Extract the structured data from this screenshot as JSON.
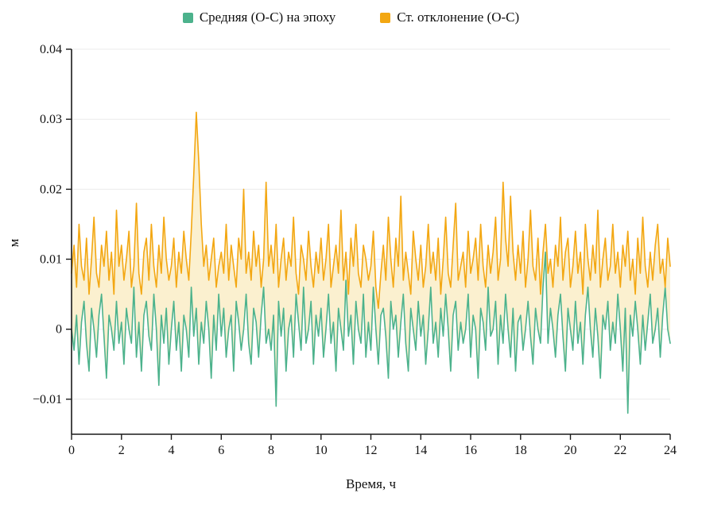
{
  "chart_data": {
    "type": "line",
    "title": "",
    "xlabel": "Время, ч",
    "ylabel": "м",
    "xlim": [
      0,
      24
    ],
    "ylim": [
      -0.015,
      0.04
    ],
    "x_ticks": {
      "values": [
        0,
        2,
        4,
        6,
        8,
        10,
        12,
        14,
        16,
        18,
        20,
        22,
        24
      ],
      "labels": [
        "0",
        "2",
        "4",
        "6",
        "8",
        "10",
        "12",
        "14",
        "16",
        "18",
        "20",
        "22",
        "24"
      ]
    },
    "y_ticks": {
      "values": [
        -0.01,
        0,
        0.01,
        0.02,
        0.03,
        0.04
      ],
      "labels": [
        "−0.01",
        "0",
        "0.01",
        "0.02",
        "0.03",
        "0.04"
      ]
    },
    "grid": "horizontal",
    "legend_position": "top-center",
    "band_fill_color": "#fbf0cf",
    "x_start": 0,
    "x_step": 0.1,
    "value_scale": 0.001,
    "series": [
      {
        "name": "Средняя (О-С) на эпоху",
        "color": "#4cb28c",
        "values": [
          0,
          -3,
          2,
          -5,
          1,
          4,
          -2,
          -6,
          3,
          0,
          -4,
          2,
          5,
          -1,
          -7,
          2,
          0,
          -3,
          4,
          -2,
          1,
          -5,
          3,
          0,
          -2,
          6,
          -4,
          1,
          -6,
          2,
          4,
          -1,
          -3,
          5,
          0,
          -8,
          2,
          -2,
          3,
          -5,
          0,
          4,
          -3,
          1,
          -6,
          2,
          0,
          -4,
          6,
          -1,
          3,
          -5,
          1,
          -2,
          4,
          0,
          -7,
          2,
          -3,
          5,
          -1,
          3,
          -4,
          0,
          2,
          -6,
          4,
          1,
          -3,
          0,
          5,
          -2,
          -5,
          3,
          1,
          -4,
          2,
          6,
          -2,
          0,
          -3,
          2,
          -11,
          4,
          -1,
          3,
          -6,
          0,
          2,
          -4,
          5,
          1,
          -3,
          6,
          -2,
          0,
          4,
          -5,
          2,
          -1,
          3,
          -4,
          0,
          5,
          -2,
          1,
          -6,
          3,
          0,
          -3,
          7,
          -1,
          2,
          -5,
          4,
          0,
          -2,
          5,
          -4,
          1,
          -3,
          6,
          0,
          -5,
          2,
          3,
          -1,
          -7,
          4,
          0,
          2,
          -4,
          1,
          5,
          -2,
          -6,
          3,
          0,
          -3,
          4,
          -1,
          2,
          -5,
          0,
          6,
          -2,
          1,
          -4,
          3,
          -1,
          5,
          0,
          -6,
          2,
          4,
          -3,
          1,
          -2,
          0,
          5,
          -4,
          2,
          0,
          -7,
          3,
          1,
          -3,
          6,
          -1,
          0,
          4,
          -5,
          2,
          -2,
          5,
          0,
          -4,
          3,
          -6,
          1,
          2,
          -3,
          0,
          4,
          -1,
          -5,
          3,
          0,
          -2,
          6,
          11,
          -2,
          3,
          0,
          -4,
          2,
          5,
          -1,
          -6,
          3,
          0,
          -3,
          4,
          -2,
          1,
          -5,
          2,
          6,
          0,
          -4,
          3,
          -1,
          -7,
          2,
          0,
          4,
          -3,
          1,
          -2,
          5,
          0,
          -6,
          3,
          -12,
          2,
          -1,
          4,
          0,
          -5,
          2,
          -3,
          1,
          5,
          -2,
          0,
          3,
          -4,
          2,
          6,
          0,
          -2
        ]
      },
      {
        "name": "Ст. отклонение (О-С)",
        "color": "#f3a712",
        "values": [
          8,
          12,
          6,
          15,
          9,
          7,
          13,
          5,
          10,
          16,
          8,
          6,
          12,
          9,
          14,
          7,
          11,
          5,
          17,
          9,
          12,
          7,
          10,
          14,
          6,
          9,
          18,
          8,
          5,
          11,
          13,
          7,
          15,
          9,
          6,
          12,
          8,
          16,
          10,
          7,
          9,
          13,
          6,
          11,
          8,
          14,
          10,
          7,
          14,
          22,
          31,
          24,
          15,
          9,
          12,
          7,
          10,
          13,
          6,
          9,
          11,
          8,
          15,
          7,
          12,
          9,
          6,
          13,
          10,
          20,
          8,
          11,
          7,
          14,
          9,
          12,
          6,
          10,
          21,
          9,
          12,
          8,
          15,
          6,
          10,
          13,
          7,
          11,
          9,
          16,
          8,
          5,
          12,
          10,
          7,
          14,
          9,
          6,
          11,
          8,
          13,
          7,
          10,
          15,
          6,
          9,
          12,
          8,
          17,
          7,
          11,
          5,
          13,
          9,
          15,
          8,
          6,
          12,
          10,
          7,
          9,
          14,
          6,
          3,
          8,
          12,
          7,
          16,
          10,
          6,
          13,
          9,
          19,
          7,
          11,
          8,
          5,
          14,
          10,
          7,
          12,
          6,
          9,
          15,
          8,
          11,
          7,
          13,
          5,
          10,
          16,
          8,
          6,
          12,
          18,
          7,
          9,
          11,
          6,
          14,
          8,
          10,
          13,
          7,
          15,
          9,
          6,
          12,
          8,
          11,
          16,
          7,
          10,
          21,
          13,
          9,
          19,
          11,
          7,
          12,
          8,
          14,
          6,
          10,
          17,
          9,
          7,
          13,
          5,
          11,
          15,
          8,
          10,
          6,
          12,
          9,
          16,
          7,
          11,
          13,
          6,
          9,
          14,
          8,
          11,
          5,
          15,
          10,
          7,
          12,
          8,
          17,
          6,
          10,
          13,
          7,
          9,
          15,
          8,
          11,
          6,
          12,
          9,
          14,
          7,
          10,
          5,
          13,
          8,
          16,
          9,
          6,
          11,
          7,
          12,
          15,
          8,
          10,
          6,
          13,
          9
        ]
      }
    ]
  }
}
